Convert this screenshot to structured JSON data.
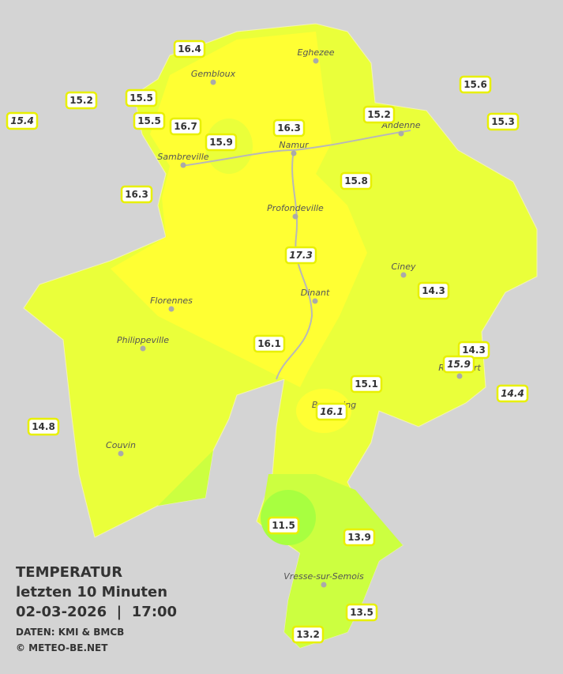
{
  "title": {
    "line1": "TEMPERATUR",
    "line2": "letzten 10 Minuten",
    "line3": "02-03-2026  |  17:00",
    "source": "DATEN: KMI & BMCB",
    "copyright": "© METEO-BE.NET"
  },
  "stations": [
    16.4,
    15.2,
    15.4,
    15.5,
    15.5,
    16.7,
    15.9,
    16.3,
    15.2,
    15.6,
    15.3,
    16.3,
    15.8,
    17.3,
    14.3,
    16.1,
    14.3,
    15.9,
    15.1,
    14.4,
    16.1,
    14.8,
    11.5,
    13.9,
    13.5,
    13.2
  ],
  "towns": [
    "Eghezee",
    "Gembloux",
    "Andenne",
    "Namur",
    "Sambreville",
    "Profondeville",
    "Ciney",
    "Dinant",
    "Florennes",
    "Philippeville",
    "Rochefort",
    "Beauraing",
    "Couvin",
    "Vresse-sur-Semois"
  ]
}
